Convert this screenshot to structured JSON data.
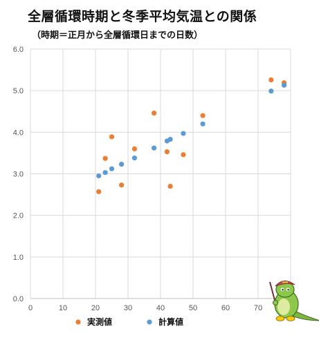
{
  "chart_data": {
    "type": "scatter",
    "title": "全層循環時期と冬季平均気温との関係",
    "subtitle": "（時期＝正月から全層循環日までの日数）",
    "xlim": [
      0,
      80
    ],
    "ylim": [
      0,
      6
    ],
    "x_ticks": [
      "0",
      "10",
      "20",
      "30",
      "40",
      "50",
      "60",
      "70",
      "80"
    ],
    "y_ticks": [
      "0.0",
      "1.0",
      "2.0",
      "3.0",
      "4.0",
      "5.0",
      "6.0"
    ],
    "grid": true,
    "legend_position": "bottom",
    "series": [
      {
        "name": "実測値",
        "color": "#ED7D31",
        "points": [
          {
            "x": 21,
            "y": 2.57
          },
          {
            "x": 23,
            "y": 3.37
          },
          {
            "x": 25,
            "y": 3.89
          },
          {
            "x": 28,
            "y": 2.73
          },
          {
            "x": 32,
            "y": 3.6
          },
          {
            "x": 38,
            "y": 4.46
          },
          {
            "x": 42,
            "y": 3.53
          },
          {
            "x": 43,
            "y": 2.7
          },
          {
            "x": 47,
            "y": 3.46
          },
          {
            "x": 53,
            "y": 4.4
          },
          {
            "x": 74,
            "y": 5.26
          },
          {
            "x": 78,
            "y": 5.19
          }
        ]
      },
      {
        "name": "計算値",
        "color": "#5B9BD5",
        "points": [
          {
            "x": 21,
            "y": 2.95
          },
          {
            "x": 23,
            "y": 3.03
          },
          {
            "x": 25,
            "y": 3.12
          },
          {
            "x": 28,
            "y": 3.23
          },
          {
            "x": 32,
            "y": 3.38
          },
          {
            "x": 38,
            "y": 3.62
          },
          {
            "x": 42,
            "y": 3.79
          },
          {
            "x": 43,
            "y": 3.83
          },
          {
            "x": 47,
            "y": 3.97
          },
          {
            "x": 53,
            "y": 4.2
          },
          {
            "x": 74,
            "y": 4.99
          },
          {
            "x": 78,
            "y": 5.13
          }
        ]
      }
    ]
  },
  "mascot": {
    "icon": "green-dinosaur-mascot-icon"
  }
}
